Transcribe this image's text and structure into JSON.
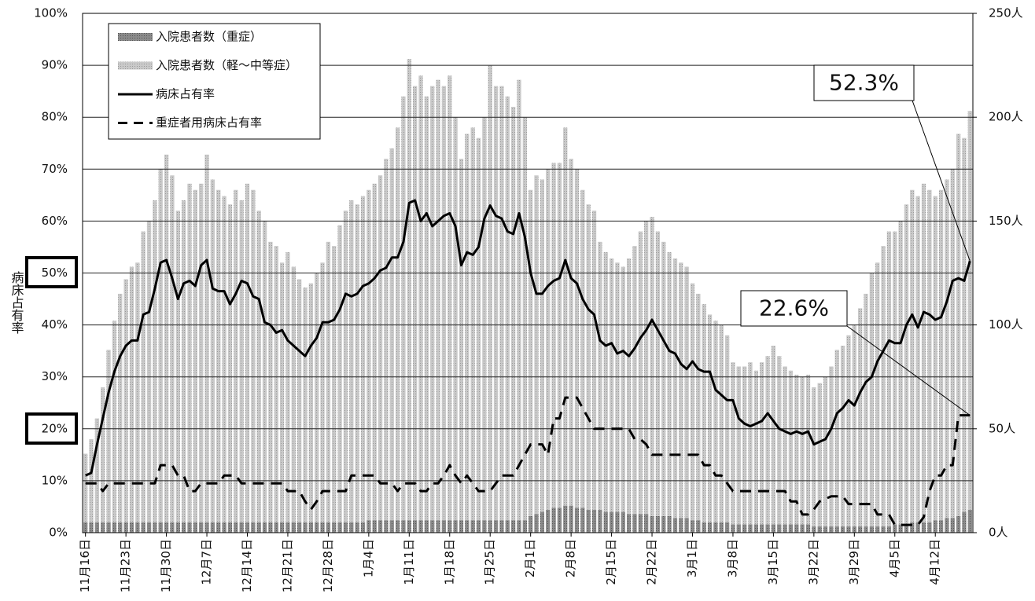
{
  "chart_data": {
    "type": "bar",
    "ylabel": "病床占有率",
    "categories": [
      "11月16日",
      null,
      null,
      null,
      null,
      null,
      null,
      "11月23日",
      null,
      null,
      null,
      null,
      null,
      null,
      "11月30日",
      null,
      null,
      null,
      null,
      null,
      null,
      "12月7日",
      null,
      null,
      null,
      null,
      null,
      null,
      "12月14日",
      null,
      null,
      null,
      null,
      null,
      null,
      "12月21日",
      null,
      null,
      null,
      null,
      null,
      null,
      "12月28日",
      null,
      null,
      null,
      null,
      null,
      null,
      "1月4日",
      null,
      null,
      null,
      null,
      null,
      null,
      "1月11日",
      null,
      null,
      null,
      null,
      null,
      null,
      "1月18日",
      null,
      null,
      null,
      null,
      null,
      null,
      "1月25日",
      null,
      null,
      null,
      null,
      null,
      null,
      "2月1日",
      null,
      null,
      null,
      null,
      null,
      null,
      "2月8日",
      null,
      null,
      null,
      null,
      null,
      null,
      "2月15日",
      null,
      null,
      null,
      null,
      null,
      null,
      "2月22日",
      null,
      null,
      null,
      null,
      null,
      null,
      "3月1日",
      null,
      null,
      null,
      null,
      null,
      null,
      "3月8日",
      null,
      null,
      null,
      null,
      null,
      null,
      "3月15日",
      null,
      null,
      null,
      null,
      null,
      null,
      "3月22日",
      null,
      null,
      null,
      null,
      null,
      null,
      "3月29日",
      null,
      null,
      null,
      null,
      null,
      null,
      "4月5日",
      null,
      null,
      null,
      null,
      null,
      null,
      "4月12日",
      null,
      null,
      null,
      null,
      null,
      null
    ],
    "series": [
      {
        "name": "入院患者数（重症）",
        "type": "bar",
        "axis": "y2",
        "color": "#8a8a8a",
        "values": [
          5,
          5,
          5,
          5,
          5,
          5,
          5,
          5,
          5,
          5,
          5,
          5,
          5,
          5,
          5,
          5,
          5,
          5,
          5,
          5,
          5,
          5,
          5,
          5,
          5,
          5,
          5,
          5,
          5,
          5,
          5,
          5,
          5,
          5,
          5,
          5,
          5,
          5,
          5,
          5,
          5,
          5,
          5,
          5,
          5,
          5,
          5,
          5,
          5,
          6,
          6,
          6,
          6,
          6,
          6,
          6,
          6,
          6,
          6,
          6,
          6,
          6,
          6,
          6,
          6,
          6,
          6,
          6,
          6,
          6,
          6,
          6,
          6,
          6,
          6,
          6,
          6,
          8,
          9,
          10,
          11,
          12,
          12,
          13,
          13,
          12,
          12,
          11,
          11,
          11,
          10,
          10,
          10,
          10,
          9,
          9,
          9,
          9,
          8,
          8,
          8,
          8,
          7,
          7,
          7,
          6,
          6,
          5,
          5,
          5,
          5,
          5,
          4,
          4,
          4,
          4,
          4,
          4,
          4,
          4,
          4,
          4,
          4,
          4,
          4,
          4,
          3,
          3,
          3,
          3,
          3,
          3,
          3,
          3,
          3,
          3,
          3,
          3,
          3,
          3,
          4,
          4,
          4,
          5,
          5,
          5,
          5,
          6,
          6,
          7,
          7,
          8,
          10,
          11
        ]
      },
      {
        "name": "入院患者数（軽～中等症）",
        "type": "bar",
        "axis": "y2",
        "color": "#c9c9c9",
        "values": [
          33,
          40,
          50,
          65,
          83,
          97,
          110,
          117,
          123,
          125,
          140,
          145,
          155,
          170,
          177,
          167,
          150,
          155,
          163,
          160,
          163,
          177,
          165,
          160,
          157,
          153,
          160,
          155,
          163,
          160,
          150,
          145,
          135,
          133,
          125,
          130,
          123,
          117,
          113,
          115,
          120,
          125,
          135,
          133,
          143,
          150,
          155,
          153,
          157,
          159,
          162,
          166,
          174,
          179,
          189,
          204,
          222,
          209,
          214,
          204,
          209,
          212,
          209,
          214,
          194,
          174,
          186,
          189,
          184,
          194,
          219,
          209,
          209,
          204,
          199,
          212,
          194,
          157,
          163,
          160,
          164,
          166,
          166,
          182,
          167,
          163,
          153,
          147,
          144,
          129,
          125,
          122,
          120,
          118,
          123,
          129,
          136,
          141,
          144,
          137,
          132,
          127,
          125,
          123,
          121,
          114,
          109,
          105,
          100,
          97,
          95,
          90,
          78,
          76,
          76,
          78,
          74,
          78,
          81,
          86,
          81,
          76,
          74,
          72,
          71,
          72,
          67,
          69,
          72,
          77,
          85,
          87,
          92,
          97,
          105,
          112,
          122,
          127,
          135,
          142,
          141,
          146,
          154,
          160,
          157,
          163,
          160,
          156,
          159,
          163,
          168,
          184,
          180,
          192
        ]
      },
      {
        "name": "病床占有率",
        "type": "line",
        "color": "#000000",
        "values": [
          11,
          11.5,
          17,
          22,
          27,
          31,
          34,
          36,
          37,
          37,
          42,
          42.5,
          47,
          52,
          52.5,
          49,
          45,
          48,
          48.5,
          47.5,
          51.5,
          52.5,
          47,
          46.5,
          46.5,
          44,
          46,
          48.5,
          48,
          45.5,
          45,
          40.5,
          40,
          38.5,
          39,
          37,
          36,
          35,
          34,
          36,
          37.5,
          40.5,
          40.5,
          41,
          43,
          46,
          45.5,
          46,
          47.5,
          48,
          49,
          50.5,
          51,
          53,
          53,
          56,
          63.5,
          64,
          60,
          61.5,
          59,
          60,
          61,
          61.5,
          59,
          51.5,
          54,
          53.5,
          55,
          60.5,
          63,
          61,
          60.5,
          58,
          57.5,
          61.5,
          57,
          50,
          46,
          46,
          47.5,
          48.5,
          49,
          52.5,
          49,
          48,
          45,
          43,
          42,
          37,
          36,
          36.5,
          34.5,
          35,
          34,
          35.5,
          37.5,
          39,
          41,
          39,
          37,
          35,
          34.5,
          32.5,
          31.5,
          33,
          31.5,
          31,
          31,
          27.5,
          26.5,
          25.5,
          25.5,
          22,
          21,
          20.5,
          21,
          21.5,
          23,
          21.5,
          20,
          19.5,
          19,
          19.5,
          19,
          19.5,
          17,
          17.5,
          18,
          20,
          23,
          24,
          25.5,
          24.5,
          27,
          29,
          30,
          33,
          35,
          37,
          36.5,
          36.5,
          40,
          42,
          39.5,
          42.5,
          42,
          41,
          41.5,
          44.5,
          48.5,
          49,
          48.5,
          52.3
        ]
      },
      {
        "name": "重症者用病床占有率",
        "type": "line",
        "dash": true,
        "color": "#000000",
        "values": [
          9.5,
          9.5,
          9.5,
          8,
          9.5,
          9.5,
          9.5,
          9.5,
          9.5,
          9.5,
          9.5,
          9.5,
          9.5,
          13,
          13,
          13,
          11,
          11,
          8,
          8,
          9.5,
          9.5,
          9.5,
          9.5,
          11,
          11,
          11,
          9.5,
          9.5,
          9.5,
          9.5,
          9.5,
          9.5,
          9.5,
          9.5,
          8,
          8,
          8,
          6,
          4.5,
          6,
          8,
          8,
          8,
          8,
          8,
          11,
          11,
          11,
          11,
          11,
          9.5,
          9.5,
          9.5,
          8,
          9.5,
          9.5,
          9.5,
          8,
          8,
          9.5,
          9.5,
          11,
          13,
          11,
          9.5,
          11,
          9.5,
          8,
          8,
          8,
          9.5,
          11,
          11,
          11,
          13,
          15,
          17,
          17,
          17,
          15,
          22,
          22,
          26,
          26,
          26,
          24,
          22,
          20,
          20,
          20,
          20,
          20,
          20,
          20,
          18,
          18,
          17,
          15,
          15,
          15,
          15,
          15,
          15,
          15,
          15,
          15,
          13,
          13,
          11,
          11,
          9.5,
          8,
          8,
          8,
          8,
          8,
          8,
          8,
          8,
          8,
          8,
          6,
          6,
          3.5,
          3.5,
          4.5,
          6,
          6.5,
          7,
          7,
          7,
          5.5,
          5.5,
          5.5,
          5.5,
          5.5,
          3.5,
          3.5,
          3.5,
          1.5,
          1.5,
          1.5,
          1.5,
          1.5,
          3,
          8,
          11,
          11,
          13,
          13,
          22.6,
          22.6,
          22.6
        ]
      }
    ],
    "annotations": [
      {
        "text": "52.3%",
        "series": 2
      },
      {
        "text": "22.6%",
        "series": 3
      }
    ],
    "ylim": [
      0,
      100
    ],
    "yticks": [
      {
        "value": 0,
        "label": "0%"
      },
      {
        "value": 10,
        "label": "10%"
      },
      {
        "value": 20,
        "label": "20%"
      },
      {
        "value": 30,
        "label": "30%"
      },
      {
        "value": 40,
        "label": "40%"
      },
      {
        "value": 50,
        "label": "50%"
      },
      {
        "value": 60,
        "label": "60%"
      },
      {
        "value": 70,
        "label": "70%"
      },
      {
        "value": 80,
        "label": "80%"
      },
      {
        "value": 90,
        "label": "90%"
      },
      {
        "value": 100,
        "label": "100%"
      }
    ],
    "y2lim": [
      0,
      250
    ],
    "y2ticks": [
      {
        "value": 0,
        "label": "0人"
      },
      {
        "value": 50,
        "label": "50人"
      },
      {
        "value": 100,
        "label": "100人"
      },
      {
        "value": 150,
        "label": "150人"
      },
      {
        "value": 200,
        "label": "200人"
      },
      {
        "value": 250,
        "label": "250人"
      }
    ],
    "grid": true,
    "legend": "upper left"
  }
}
